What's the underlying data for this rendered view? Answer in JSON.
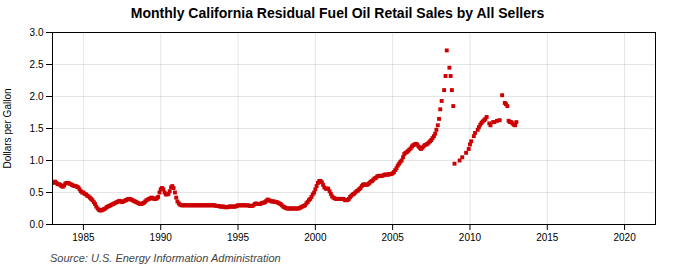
{
  "chart_data": {
    "type": "scatter",
    "title": "Monthly California Residual Fuel Oil Retail Sales by All Sellers",
    "ylabel": "Dollars per Gallon",
    "source": "Source: U.S. Energy Information Administration",
    "color": "#CC0000",
    "marker": "square",
    "grid": true,
    "xlim": [
      1983,
      2022
    ],
    "ylim": [
      0.0,
      3.0
    ],
    "xticks": [
      1985,
      1990,
      1995,
      2000,
      2005,
      2010,
      2015,
      2020
    ],
    "yticks": [
      {
        "value": 0.0,
        "label": "0.0"
      },
      0.5,
      {
        "value": 1.0,
        "label": "1.0"
      },
      1.5,
      {
        "value": 2.0,
        "label": "2.0"
      },
      2.5,
      {
        "value": 3.0,
        "label": "3.0"
      }
    ],
    "x": [
      1983.0,
      1983.08,
      1983.17,
      1983.25,
      1983.33,
      1983.42,
      1983.5,
      1983.58,
      1983.67,
      1983.75,
      1983.83,
      1983.92,
      1984.0,
      1984.08,
      1984.17,
      1984.25,
      1984.33,
      1984.42,
      1984.5,
      1984.58,
      1984.67,
      1984.75,
      1984.83,
      1984.92,
      1985.0,
      1985.08,
      1985.17,
      1985.25,
      1985.33,
      1985.42,
      1985.5,
      1985.58,
      1985.67,
      1985.75,
      1985.83,
      1985.92,
      1986.0,
      1986.08,
      1986.17,
      1986.25,
      1986.33,
      1986.42,
      1986.5,
      1986.58,
      1986.67,
      1986.75,
      1986.83,
      1986.92,
      1987.0,
      1987.08,
      1987.17,
      1987.25,
      1987.33,
      1987.42,
      1987.5,
      1987.58,
      1987.67,
      1987.75,
      1987.83,
      1987.92,
      1988.0,
      1988.08,
      1988.17,
      1988.25,
      1988.33,
      1988.42,
      1988.5,
      1988.58,
      1988.67,
      1988.75,
      1988.83,
      1988.92,
      1989.0,
      1989.08,
      1989.17,
      1989.25,
      1989.33,
      1989.42,
      1989.5,
      1989.58,
      1989.67,
      1989.75,
      1989.83,
      1989.92,
      1990.0,
      1990.08,
      1990.17,
      1990.25,
      1990.33,
      1990.42,
      1990.5,
      1990.58,
      1990.67,
      1990.75,
      1990.83,
      1990.92,
      1991.0,
      1991.08,
      1991.17,
      1991.25,
      1991.33,
      1991.42,
      1991.5,
      1991.58,
      1991.67,
      1991.75,
      1991.83,
      1991.92,
      1992.0,
      1992.08,
      1992.17,
      1992.25,
      1992.33,
      1992.42,
      1992.5,
      1992.58,
      1992.67,
      1992.75,
      1992.83,
      1992.92,
      1993.0,
      1993.08,
      1993.17,
      1993.25,
      1993.33,
      1993.42,
      1993.5,
      1993.58,
      1993.67,
      1993.75,
      1993.83,
      1993.92,
      1994.0,
      1994.08,
      1994.17,
      1994.25,
      1994.33,
      1994.42,
      1994.5,
      1994.58,
      1994.67,
      1994.75,
      1994.83,
      1994.92,
      1995.0,
      1995.08,
      1995.17,
      1995.25,
      1995.33,
      1995.42,
      1995.5,
      1995.58,
      1995.67,
      1995.75,
      1995.83,
      1995.92,
      1996.0,
      1996.08,
      1996.17,
      1996.25,
      1996.33,
      1996.42,
      1996.5,
      1996.58,
      1996.67,
      1996.75,
      1996.83,
      1996.92,
      1997.0,
      1997.08,
      1997.17,
      1997.25,
      1997.33,
      1997.42,
      1997.5,
      1997.58,
      1997.67,
      1997.75,
      1997.83,
      1997.92,
      1998.0,
      1998.08,
      1998.17,
      1998.25,
      1998.33,
      1998.42,
      1998.5,
      1998.58,
      1998.67,
      1998.75,
      1998.83,
      1998.92,
      1999.0,
      1999.08,
      1999.17,
      1999.25,
      1999.33,
      1999.42,
      1999.5,
      1999.58,
      1999.67,
      1999.75,
      1999.83,
      1999.92,
      2000.0,
      2000.08,
      2000.17,
      2000.25,
      2000.33,
      2000.42,
      2000.5,
      2000.58,
      2000.67,
      2000.75,
      2000.83,
      2000.92,
      2001.0,
      2001.08,
      2001.17,
      2001.25,
      2001.33,
      2001.42,
      2001.5,
      2001.58,
      2001.67,
      2001.75,
      2001.83,
      2001.92,
      2002.0,
      2002.08,
      2002.17,
      2002.25,
      2002.33,
      2002.42,
      2002.5,
      2002.58,
      2002.67,
      2002.75,
      2002.83,
      2002.92,
      2003.0,
      2003.08,
      2003.17,
      2003.25,
      2003.33,
      2003.42,
      2003.5,
      2003.58,
      2003.67,
      2003.75,
      2003.83,
      2003.92,
      2004.0,
      2004.08,
      2004.17,
      2004.25,
      2004.33,
      2004.42,
      2004.5,
      2004.58,
      2004.67,
      2004.75,
      2004.83,
      2004.92,
      2005.0,
      2005.08,
      2005.17,
      2005.25,
      2005.33,
      2005.42,
      2005.5,
      2005.58,
      2005.67,
      2005.75,
      2005.83,
      2005.92,
      2006.0,
      2006.08,
      2006.17,
      2006.25,
      2006.33,
      2006.42,
      2006.5,
      2006.58,
      2006.67,
      2006.75,
      2006.83,
      2006.92,
      2007.0,
      2007.08,
      2007.17,
      2007.25,
      2007.33,
      2007.42,
      2007.5,
      2007.58,
      2007.67,
      2007.75,
      2007.83,
      2007.92,
      2008.0,
      2008.08,
      2008.17,
      2008.33,
      2008.42,
      2008.5,
      2008.67,
      2008.75,
      2008.83,
      2008.92,
      2009.0,
      2009.33,
      2009.5,
      2009.75,
      2009.92,
      2010.0,
      2010.08,
      2010.25,
      2010.33,
      2010.5,
      2010.58,
      2010.67,
      2010.75,
      2010.83,
      2010.92,
      2011.0,
      2011.08,
      2011.25,
      2011.33,
      2011.5,
      2011.58,
      2011.75,
      2011.92,
      2012.08,
      2012.25,
      2012.33,
      2012.42,
      2012.5,
      2012.58,
      2012.67,
      2012.75,
      2012.83,
      2012.92,
      2013.0
    ],
    "values": [
      0.65,
      0.66,
      0.67,
      0.65,
      0.63,
      0.63,
      0.62,
      0.6,
      0.59,
      0.61,
      0.64,
      0.65,
      0.65,
      0.64,
      0.63,
      0.62,
      0.61,
      0.6,
      0.6,
      0.59,
      0.58,
      0.55,
      0.52,
      0.5,
      0.5,
      0.48,
      0.47,
      0.45,
      0.44,
      0.42,
      0.4,
      0.38,
      0.35,
      0.32,
      0.28,
      0.25,
      0.23,
      0.22,
      0.22,
      0.23,
      0.24,
      0.25,
      0.27,
      0.28,
      0.29,
      0.3,
      0.31,
      0.32,
      0.33,
      0.34,
      0.35,
      0.36,
      0.37,
      0.36,
      0.35,
      0.36,
      0.37,
      0.38,
      0.39,
      0.4,
      0.4,
      0.39,
      0.38,
      0.37,
      0.36,
      0.35,
      0.34,
      0.33,
      0.32,
      0.32,
      0.33,
      0.34,
      0.36,
      0.38,
      0.39,
      0.4,
      0.41,
      0.42,
      0.41,
      0.4,
      0.4,
      0.41,
      0.43,
      0.5,
      0.55,
      0.57,
      0.55,
      0.5,
      0.47,
      0.47,
      0.48,
      0.52,
      0.58,
      0.6,
      0.57,
      0.5,
      0.42,
      0.36,
      0.33,
      0.31,
      0.3,
      0.3,
      0.3,
      0.3,
      0.3,
      0.3,
      0.3,
      0.3,
      0.3,
      0.3,
      0.3,
      0.3,
      0.3,
      0.3,
      0.3,
      0.3,
      0.3,
      0.3,
      0.3,
      0.3,
      0.3,
      0.3,
      0.3,
      0.3,
      0.3,
      0.3,
      0.3,
      0.29,
      0.29,
      0.29,
      0.28,
      0.28,
      0.28,
      0.28,
      0.27,
      0.27,
      0.27,
      0.28,
      0.28,
      0.28,
      0.28,
      0.28,
      0.28,
      0.29,
      0.3,
      0.3,
      0.3,
      0.3,
      0.3,
      0.3,
      0.3,
      0.3,
      0.3,
      0.29,
      0.29,
      0.29,
      0.3,
      0.32,
      0.33,
      0.32,
      0.32,
      0.32,
      0.33,
      0.34,
      0.34,
      0.35,
      0.37,
      0.39,
      0.38,
      0.37,
      0.36,
      0.36,
      0.36,
      0.35,
      0.35,
      0.34,
      0.33,
      0.32,
      0.3,
      0.28,
      0.27,
      0.26,
      0.25,
      0.25,
      0.25,
      0.25,
      0.25,
      0.25,
      0.25,
      0.25,
      0.25,
      0.25,
      0.26,
      0.27,
      0.28,
      0.29,
      0.3,
      0.33,
      0.35,
      0.38,
      0.4,
      0.43,
      0.47,
      0.5,
      0.55,
      0.6,
      0.65,
      0.68,
      0.68,
      0.66,
      0.62,
      0.58,
      0.56,
      0.56,
      0.56,
      0.52,
      0.48,
      0.44,
      0.42,
      0.41,
      0.4,
      0.4,
      0.4,
      0.4,
      0.4,
      0.4,
      0.4,
      0.38,
      0.38,
      0.38,
      0.4,
      0.43,
      0.45,
      0.47,
      0.48,
      0.5,
      0.52,
      0.53,
      0.55,
      0.57,
      0.6,
      0.62,
      0.63,
      0.62,
      0.62,
      0.63,
      0.65,
      0.67,
      0.68,
      0.7,
      0.72,
      0.73,
      0.75,
      0.76,
      0.76,
      0.76,
      0.76,
      0.77,
      0.78,
      0.78,
      0.78,
      0.78,
      0.79,
      0.79,
      0.8,
      0.82,
      0.85,
      0.88,
      0.92,
      0.95,
      0.98,
      1.0,
      1.05,
      1.1,
      1.12,
      1.13,
      1.15,
      1.17,
      1.19,
      1.22,
      1.24,
      1.25,
      1.26,
      1.25,
      1.22,
      1.2,
      1.18,
      1.2,
      1.22,
      1.24,
      1.25,
      1.26,
      1.28,
      1.3,
      1.32,
      1.35,
      1.38,
      1.42,
      1.48,
      1.55,
      1.65,
      1.8,
      1.93,
      2.1,
      2.32,
      2.72,
      2.45,
      2.32,
      2.1,
      1.85,
      0.95,
      1.0,
      1.05,
      1.12,
      1.18,
      1.25,
      1.3,
      1.38,
      1.43,
      1.48,
      1.52,
      1.56,
      1.59,
      1.61,
      1.63,
      1.65,
      1.68,
      1.58,
      1.55,
      1.6,
      1.6,
      1.62,
      1.63,
      2.02,
      1.9,
      1.88,
      1.85,
      1.62,
      1.6,
      1.6,
      1.58,
      1.56,
      1.55,
      1.6
    ]
  }
}
